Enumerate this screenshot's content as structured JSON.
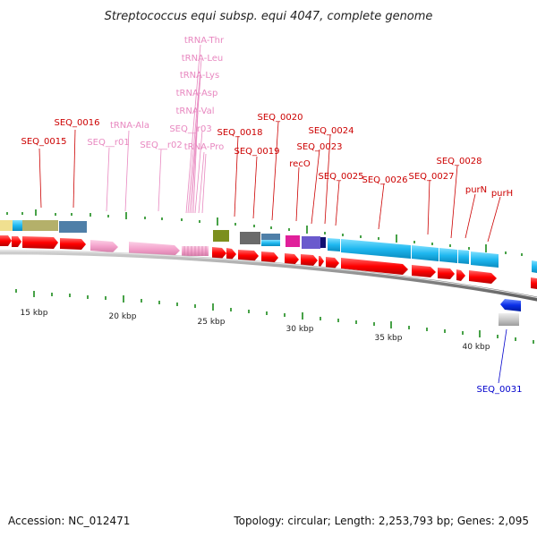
{
  "title": "Streptococcus equi subsp. equi 4047, complete genome",
  "footer": {
    "accession": "Accession: NC_012471",
    "summary": "Topology: circular; Length: 2,253,793 bp; Genes: 2,095"
  },
  "colors": {
    "gene_label": "#cc0000",
    "trna_label": "#e888c0",
    "rna_label": "#e888c0",
    "reverse_label": "#0000cc",
    "cds_forward": "#ff0000",
    "rna_feature": "#f4a3cc",
    "scale_tick": "#1a8a1a",
    "backbone": "#808080"
  },
  "scale_labels": [
    "15 kbp",
    "20 kbp",
    "25 kbp",
    "30 kbp",
    "35 kbp",
    "40 kbp"
  ],
  "labels": {
    "trna_thr": "tRNA-Thr",
    "trna_leu": "tRNA-Leu",
    "trna_lys": "tRNA-Lys",
    "trna_asp": "tRNA-Asp",
    "trna_val": "tRNA-Val",
    "trna_pro": "tRNA-Pro",
    "trna_ala": "tRNA-Ala",
    "seq_r01": "SEQ__r01",
    "seq_r02": "SEQ__r02",
    "seq_r03": "SEQ__r03",
    "seq_0015": "SEQ_0015",
    "seq_0016": "SEQ_0016",
    "seq_0018": "SEQ_0018",
    "seq_0019": "SEQ_0019",
    "seq_0020": "SEQ_0020",
    "seq_0023": "SEQ_0023",
    "seq_0024": "SEQ_0024",
    "seq_0025": "SEQ_0025",
    "seq_0026": "SEQ_0026",
    "seq_0027": "SEQ_0027",
    "seq_0028": "SEQ_0028",
    "seq_0031": "SEQ_0031",
    "reco": "recO",
    "purn": "purN",
    "purh": "purH"
  }
}
